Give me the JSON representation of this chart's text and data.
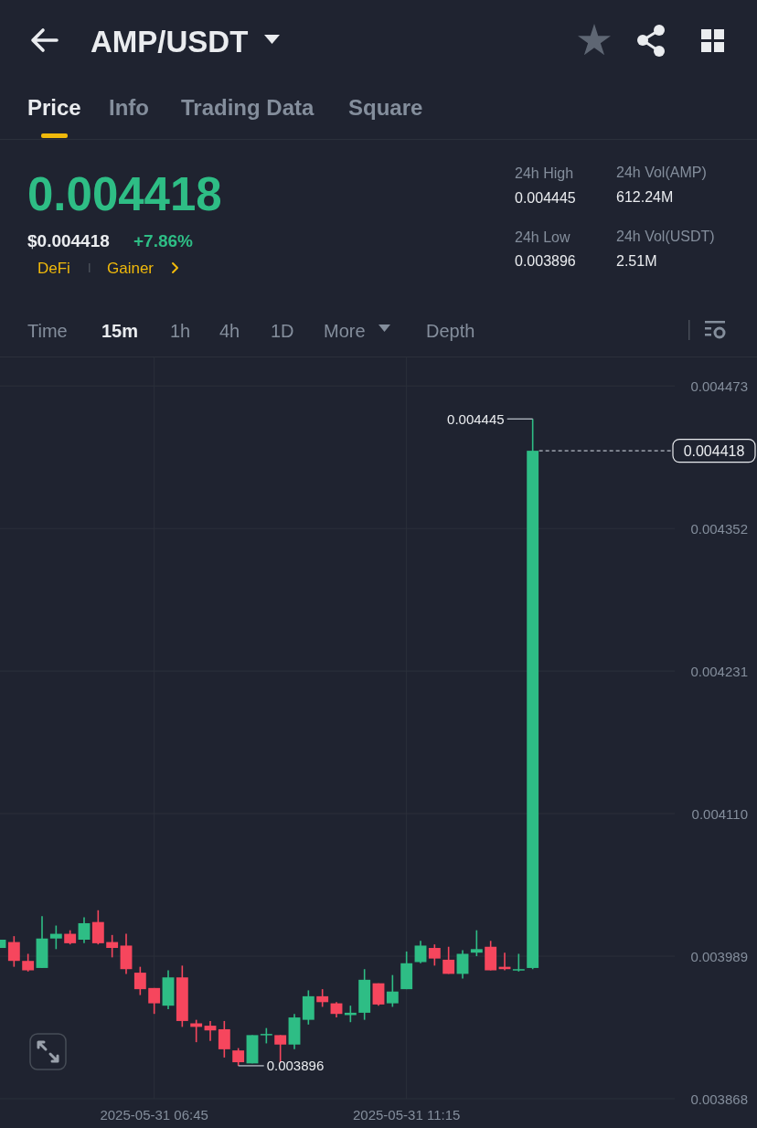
{
  "chart_data": {
    "type": "candlestick",
    "title": "AMP/USDT",
    "x": [
      "2025-05-31T04:00",
      "2025-05-31T04:15",
      "2025-05-31T04:30",
      "2025-05-31T04:45",
      "2025-05-31T05:00",
      "2025-05-31T05:15",
      "2025-05-31T05:30",
      "2025-05-31T05:45",
      "2025-05-31T06:00",
      "2025-05-31T06:15",
      "2025-05-31T06:30",
      "2025-05-31T06:45",
      "2025-05-31T07:00",
      "2025-05-31T07:15",
      "2025-05-31T07:30",
      "2025-05-31T07:45",
      "2025-05-31T08:00",
      "2025-05-31T08:15",
      "2025-05-31T08:30",
      "2025-05-31T08:45",
      "2025-05-31T09:00",
      "2025-05-31T09:15",
      "2025-05-31T09:30",
      "2025-05-31T09:45",
      "2025-05-31T10:00",
      "2025-05-31T10:15",
      "2025-05-31T10:30",
      "2025-05-31T10:45",
      "2025-05-31T11:00",
      "2025-05-31T11:15",
      "2025-05-31T11:30",
      "2025-05-31T11:45",
      "2025-05-31T12:00",
      "2025-05-31T12:15",
      "2025-05-31T12:30",
      "2025-05-31T12:45",
      "2025-05-31T13:00",
      "2025-05-31T13:15",
      "2025-05-31T13:30"
    ],
    "ohlc": [
      [
        0.003996,
        0.004003,
        0.003996,
        0.004003
      ],
      [
        0.004001,
        0.004006,
        0.00398,
        0.003985
      ],
      [
        0.003985,
        0.003991,
        0.003976,
        0.003977
      ],
      [
        0.003979,
        0.004023,
        0.003979,
        0.004004
      ],
      [
        0.004004,
        0.004015,
        0.003995,
        0.004008
      ],
      [
        0.004008,
        0.004011,
        0.003999,
        0.004
      ],
      [
        0.004003,
        0.004022,
        0.004,
        0.004017
      ],
      [
        0.004018,
        0.004028,
        0.003999,
        0.004
      ],
      [
        0.004001,
        0.004007,
        0.003988,
        0.003996
      ],
      [
        0.003998,
        0.004008,
        0.003974,
        0.003978
      ],
      [
        0.003975,
        0.00398,
        0.003956,
        0.003961
      ],
      [
        0.003962,
        0.003962,
        0.00394,
        0.003949
      ],
      [
        0.003947,
        0.003977,
        0.003944,
        0.003971
      ],
      [
        0.003971,
        0.003981,
        0.003929,
        0.003934
      ],
      [
        0.003932,
        0.003935,
        0.003916,
        0.003929
      ],
      [
        0.00393,
        0.003934,
        0.003917,
        0.003926
      ],
      [
        0.003927,
        0.003934,
        0.003903,
        0.00391
      ],
      [
        0.003909,
        0.003911,
        0.003896,
        0.003899
      ],
      [
        0.003898,
        0.003922,
        0.003898,
        0.003922
      ],
      [
        0.003922,
        0.003928,
        0.003915,
        0.003923
      ],
      [
        0.003922,
        0.003922,
        0.003899,
        0.003914
      ],
      [
        0.003914,
        0.00394,
        0.00391,
        0.003937
      ],
      [
        0.003935,
        0.00396,
        0.003931,
        0.003955
      ],
      [
        0.003955,
        0.003961,
        0.003946,
        0.00395
      ],
      [
        0.003949,
        0.00395,
        0.003937,
        0.00394
      ],
      [
        0.003939,
        0.003947,
        0.003933,
        0.003941
      ],
      [
        0.003941,
        0.003978,
        0.003935,
        0.003969
      ],
      [
        0.003966,
        0.003966,
        0.003947,
        0.003948
      ],
      [
        0.003949,
        0.003973,
        0.003946,
        0.003959
      ],
      [
        0.003961,
        0.003993,
        0.003961,
        0.003983
      ],
      [
        0.003984,
        0.004002,
        0.003983,
        0.003998
      ],
      [
        0.003996,
        0.003999,
        0.003981,
        0.003987
      ],
      [
        0.003986,
        0.003997,
        0.003974,
        0.003974
      ],
      [
        0.003974,
        0.003994,
        0.00397,
        0.003991
      ],
      [
        0.003992,
        0.004011,
        0.003989,
        0.003995
      ],
      [
        0.003997,
        0.004002,
        0.003977,
        0.003977
      ],
      [
        0.00398,
        0.003992,
        0.003977,
        0.003978
      ],
      [
        0.003977,
        0.003991,
        0.003976,
        0.003978
      ],
      [
        0.003979,
        0.004445,
        0.003978,
        0.004418
      ]
    ],
    "colors": [
      "#2ebd85",
      "#f6465d",
      "#f6465d",
      "#2ebd85",
      "#2ebd85",
      "#f6465d",
      "#2ebd85",
      "#f6465d",
      "#f6465d",
      "#f6465d",
      "#f6465d",
      "#f6465d",
      "#2ebd85",
      "#f6465d",
      "#f6465d",
      "#f6465d",
      "#f6465d",
      "#f6465d",
      "#2ebd85",
      "#2ebd85",
      "#f6465d",
      "#2ebd85",
      "#2ebd85",
      "#f6465d",
      "#f6465d",
      "#2ebd85",
      "#2ebd85",
      "#f6465d",
      "#2ebd85",
      "#2ebd85",
      "#2ebd85",
      "#f6465d",
      "#f6465d",
      "#2ebd85",
      "#2ebd85",
      "#f6465d",
      "#f6465d",
      "#2ebd85",
      "#2ebd85"
    ],
    "xlim": [
      "2025-05-31T04:00",
      "2025-05-31T17:30"
    ],
    "xticks": [
      {
        "value": "2025-05-31T06:45",
        "label": "2025-05-31 06:45"
      },
      {
        "value": "2025-05-31T11:15",
        "label": "2025-05-31 11:15"
      }
    ],
    "ylim": [
      0.003868,
      0.004498
    ],
    "yticks": [
      0.003868,
      0.003989,
      {
        "value": 0.00411,
        "label": "0.004110"
      },
      0.004231,
      0.004352,
      0.004473
    ],
    "grid": true,
    "ref_lines": [
      {
        "axis": "y",
        "value": 0.004418,
        "label": "0.004418",
        "color": "#b7bdc6",
        "line_style": "dashed"
      }
    ],
    "annotations": [
      "Price",
      "Info",
      "Trading Data",
      "Square",
      "0.004418",
      "$0.004418",
      "+7.86%",
      "DeFi",
      "Gainer",
      "24h High",
      "0.004445",
      "24h Low",
      "0.003896",
      "24h Vol(AMP)",
      "612.24M",
      "24h Vol(USDT)",
      "2.51M",
      "Time",
      "15m",
      "1h",
      "4h",
      "1D",
      "More",
      "Depth",
      {
        "text": "0.004445",
        "x": "2025-05-31T13:30",
        "y": 0.004445
      },
      {
        "text": "0.003896",
        "x": "2025-05-31T08:15",
        "y": 0.003896
      }
    ]
  }
}
